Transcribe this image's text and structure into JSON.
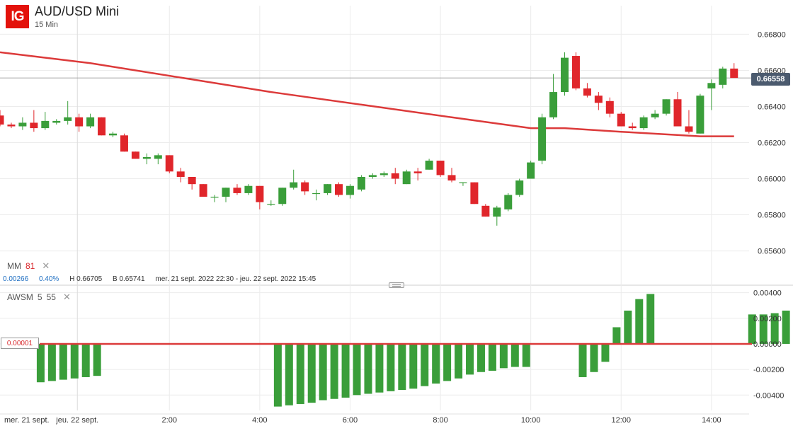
{
  "header": {
    "logo_text": "IG",
    "instrument": "AUD/USD Mini",
    "timeframe": "15 Min",
    "last_price": "0.66558"
  },
  "indicators": {
    "ma": {
      "name": "MM",
      "period": "81"
    },
    "awsm": {
      "name": "AWSM",
      "fast": "5",
      "slow": "55"
    }
  },
  "stats": {
    "change": "0.00266",
    "change_pct": "0.40%",
    "high": "H 0.66705",
    "low": "B 0.65741",
    "range": "mer. 21 sept. 2022 22:30 - jeu. 22 sept. 2022 15:45"
  },
  "zero_line_label": "0.00001",
  "colors": {
    "up": "#3a9e3a",
    "down": "#e0262b",
    "ma": "#dc3a3a",
    "grid": "#ececec"
  },
  "chart_data": [
    {
      "type": "candlestick",
      "title": "AUD/USD Mini",
      "interval": "15 Min",
      "ylim": [
        0.6552,
        0.6688
      ],
      "y_ticks": [
        "0.65600",
        "0.65800",
        "0.66000",
        "0.66200",
        "0.66400",
        "0.66600",
        "0.66800"
      ],
      "x_ticks": [
        "mer. 21 sept.",
        "jeu. 22 sept.",
        "2:00",
        "4:00",
        "6:00",
        "8:00",
        "10:00",
        "12:00",
        "14:00"
      ],
      "grid": true,
      "candles": [
        {
          "o": 0.6635,
          "h": 0.6638,
          "l": 0.6629,
          "c": 0.663
        },
        {
          "o": 0.663,
          "h": 0.6631,
          "l": 0.6628,
          "c": 0.6629
        },
        {
          "o": 0.6629,
          "h": 0.6634,
          "l": 0.6627,
          "c": 0.6631
        },
        {
          "o": 0.6631,
          "h": 0.6638,
          "l": 0.6626,
          "c": 0.6628
        },
        {
          "o": 0.6628,
          "h": 0.6637,
          "l": 0.6627,
          "c": 0.6632
        },
        {
          "o": 0.6631,
          "h": 0.6633,
          "l": 0.663,
          "c": 0.6632
        },
        {
          "o": 0.6632,
          "h": 0.6643,
          "l": 0.663,
          "c": 0.6634
        },
        {
          "o": 0.6634,
          "h": 0.6636,
          "l": 0.6626,
          "c": 0.6629
        },
        {
          "o": 0.6629,
          "h": 0.6636,
          "l": 0.6628,
          "c": 0.6634
        },
        {
          "o": 0.6634,
          "h": 0.6634,
          "l": 0.6624,
          "c": 0.6624
        },
        {
          "o": 0.6624,
          "h": 0.6626,
          "l": 0.6623,
          "c": 0.6625
        },
        {
          "o": 0.6624,
          "h": 0.6625,
          "l": 0.6615,
          "c": 0.6615
        },
        {
          "o": 0.6615,
          "h": 0.6615,
          "l": 0.6611,
          "c": 0.6611
        },
        {
          "o": 0.6611,
          "h": 0.6614,
          "l": 0.6608,
          "c": 0.6612
        },
        {
          "o": 0.6611,
          "h": 0.6614,
          "l": 0.6608,
          "c": 0.6613
        },
        {
          "o": 0.6613,
          "h": 0.6613,
          "l": 0.6603,
          "c": 0.6604
        },
        {
          "o": 0.6604,
          "h": 0.6606,
          "l": 0.6598,
          "c": 0.6601
        },
        {
          "o": 0.6601,
          "h": 0.6601,
          "l": 0.6594,
          "c": 0.6597
        },
        {
          "o": 0.6597,
          "h": 0.6597,
          "l": 0.659,
          "c": 0.659
        },
        {
          "o": 0.659,
          "h": 0.6591,
          "l": 0.6587,
          "c": 0.659
        },
        {
          "o": 0.659,
          "h": 0.6595,
          "l": 0.6587,
          "c": 0.6595
        },
        {
          "o": 0.6595,
          "h": 0.6597,
          "l": 0.6591,
          "c": 0.6592
        },
        {
          "o": 0.6592,
          "h": 0.6597,
          "l": 0.6591,
          "c": 0.6596
        },
        {
          "o": 0.6596,
          "h": 0.6596,
          "l": 0.6583,
          "c": 0.6587
        },
        {
          "o": 0.6586,
          "h": 0.6588,
          "l": 0.6585,
          "c": 0.6586
        },
        {
          "o": 0.6586,
          "h": 0.6595,
          "l": 0.6585,
          "c": 0.6595
        },
        {
          "o": 0.6595,
          "h": 0.6605,
          "l": 0.6594,
          "c": 0.6598
        },
        {
          "o": 0.6598,
          "h": 0.6599,
          "l": 0.6591,
          "c": 0.6593
        },
        {
          "o": 0.6592,
          "h": 0.6594,
          "l": 0.6588,
          "c": 0.6592
        },
        {
          "o": 0.6592,
          "h": 0.6597,
          "l": 0.6591,
          "c": 0.6597
        },
        {
          "o": 0.6597,
          "h": 0.6598,
          "l": 0.659,
          "c": 0.6591
        },
        {
          "o": 0.6591,
          "h": 0.6597,
          "l": 0.6589,
          "c": 0.6596
        },
        {
          "o": 0.6594,
          "h": 0.6602,
          "l": 0.6593,
          "c": 0.6601
        },
        {
          "o": 0.6601,
          "h": 0.6603,
          "l": 0.66,
          "c": 0.6602
        },
        {
          "o": 0.6602,
          "h": 0.6604,
          "l": 0.6601,
          "c": 0.6603
        },
        {
          "o": 0.6603,
          "h": 0.6606,
          "l": 0.6597,
          "c": 0.66
        },
        {
          "o": 0.6597,
          "h": 0.6605,
          "l": 0.6597,
          "c": 0.6604
        },
        {
          "o": 0.6604,
          "h": 0.6606,
          "l": 0.6599,
          "c": 0.6603
        },
        {
          "o": 0.6605,
          "h": 0.6611,
          "l": 0.6605,
          "c": 0.661
        },
        {
          "o": 0.661,
          "h": 0.661,
          "l": 0.6601,
          "c": 0.6602
        },
        {
          "o": 0.6602,
          "h": 0.6606,
          "l": 0.6598,
          "c": 0.6599
        },
        {
          "o": 0.6598,
          "h": 0.6598,
          "l": 0.6596,
          "c": 0.6598
        },
        {
          "o": 0.6598,
          "h": 0.6598,
          "l": 0.6586,
          "c": 0.6586
        },
        {
          "o": 0.6585,
          "h": 0.6586,
          "l": 0.6579,
          "c": 0.6579
        },
        {
          "o": 0.6579,
          "h": 0.6585,
          "l": 0.6574,
          "c": 0.6584
        },
        {
          "o": 0.6583,
          "h": 0.6592,
          "l": 0.6582,
          "c": 0.6591
        },
        {
          "o": 0.6591,
          "h": 0.66,
          "l": 0.659,
          "c": 0.6599
        },
        {
          "o": 0.66,
          "h": 0.661,
          "l": 0.66,
          "c": 0.6609
        },
        {
          "o": 0.661,
          "h": 0.6636,
          "l": 0.6608,
          "c": 0.6634
        },
        {
          "o": 0.6634,
          "h": 0.6658,
          "l": 0.6633,
          "c": 0.6648
        },
        {
          "o": 0.6648,
          "h": 0.667,
          "l": 0.6646,
          "c": 0.6667
        },
        {
          "o": 0.6668,
          "h": 0.667,
          "l": 0.6649,
          "c": 0.665
        },
        {
          "o": 0.665,
          "h": 0.6653,
          "l": 0.6645,
          "c": 0.6646
        },
        {
          "o": 0.6646,
          "h": 0.6648,
          "l": 0.6638,
          "c": 0.6642
        },
        {
          "o": 0.6643,
          "h": 0.6645,
          "l": 0.6634,
          "c": 0.6636
        },
        {
          "o": 0.6636,
          "h": 0.6637,
          "l": 0.6629,
          "c": 0.6629
        },
        {
          "o": 0.6629,
          "h": 0.6631,
          "l": 0.6627,
          "c": 0.6628
        },
        {
          "o": 0.6628,
          "h": 0.6635,
          "l": 0.6627,
          "c": 0.6634
        },
        {
          "o": 0.6634,
          "h": 0.6638,
          "l": 0.6633,
          "c": 0.6636
        },
        {
          "o": 0.6636,
          "h": 0.6644,
          "l": 0.6635,
          "c": 0.6644
        },
        {
          "o": 0.6644,
          "h": 0.6648,
          "l": 0.6629,
          "c": 0.6629
        },
        {
          "o": 0.6629,
          "h": 0.6638,
          "l": 0.6625,
          "c": 0.6626
        },
        {
          "o": 0.6625,
          "h": 0.6647,
          "l": 0.6625,
          "c": 0.6646
        },
        {
          "o": 0.665,
          "h": 0.6655,
          "l": 0.6638,
          "c": 0.6653
        },
        {
          "o": 0.6652,
          "h": 0.6662,
          "l": 0.665,
          "c": 0.6661
        },
        {
          "o": 0.6661,
          "h": 0.6664,
          "l": 0.6656,
          "c": 0.66558
        }
      ],
      "ma": {
        "name": "MM",
        "period": 81,
        "series": [
          {
            "i": 0,
            "v": 0.667
          },
          {
            "i": 8,
            "v": 0.6664
          },
          {
            "i": 16,
            "v": 0.6656
          },
          {
            "i": 24,
            "v": 0.6648
          },
          {
            "i": 32,
            "v": 0.6641
          },
          {
            "i": 40,
            "v": 0.6634
          },
          {
            "i": 47,
            "v": 0.6628
          },
          {
            "i": 50,
            "v": 0.6628
          },
          {
            "i": 55,
            "v": 0.6626
          },
          {
            "i": 62,
            "v": 0.66235
          },
          {
            "i": 65,
            "v": 0.66235
          }
        ]
      }
    },
    {
      "type": "bar",
      "title": "AWSM",
      "params": [
        5,
        55
      ],
      "ylim": [
        -0.0052,
        0.0042
      ],
      "y_ticks": [
        "-0.00400",
        "-0.00200",
        "0.00000",
        "0.00200",
        "0.00400"
      ],
      "values": [
        -0.003,
        -0.0029,
        -0.0028,
        -0.0027,
        -0.0026,
        -0.0025,
        null,
        null,
        null,
        null,
        null,
        null,
        null,
        null,
        null,
        null,
        null,
        null,
        null,
        null,
        null,
        -0.0049,
        -0.0048,
        -0.0047,
        -0.0046,
        -0.0044,
        -0.0043,
        -0.0042,
        -0.004,
        -0.0039,
        -0.0038,
        -0.0037,
        -0.0036,
        -0.0035,
        -0.0033,
        -0.0031,
        -0.0029,
        -0.0027,
        -0.0024,
        -0.0022,
        -0.0021,
        -0.0019,
        -0.0018,
        -0.0018,
        null,
        null,
        null,
        null,
        -0.0026,
        -0.0022,
        -0.0014,
        0.0013,
        0.0026,
        0.0035,
        0.0039,
        null,
        null,
        null,
        null,
        null,
        null,
        null,
        null,
        0.0023,
        0.0023,
        0.0024,
        0.0026,
        0.0029,
        0.0032
      ]
    }
  ]
}
